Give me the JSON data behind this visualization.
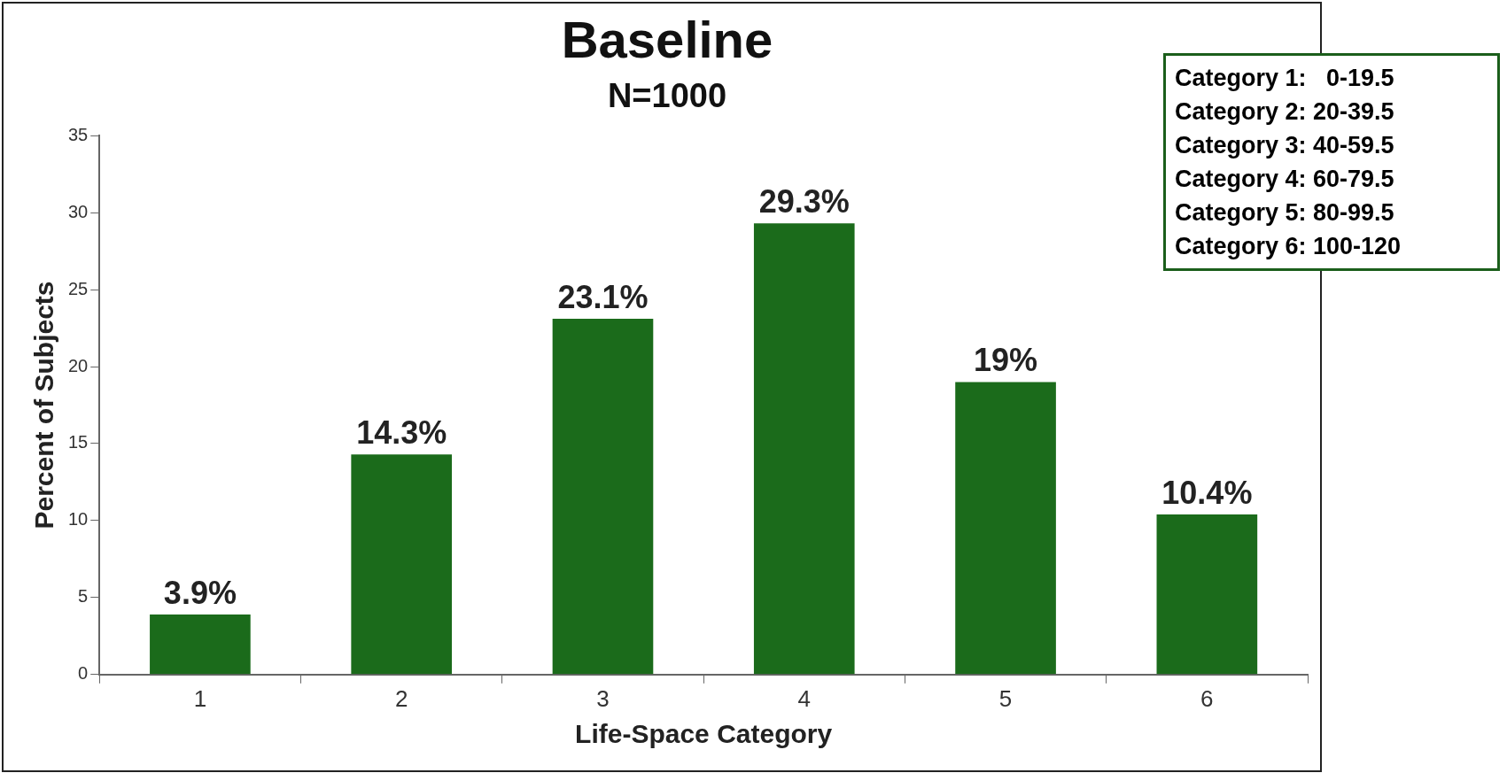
{
  "chart_data": {
    "type": "bar",
    "title": "Baseline",
    "subtitle": "N=1000",
    "xlabel": "Life-Space Category",
    "ylabel": "Percent of Subjects",
    "categories": [
      "1",
      "2",
      "3",
      "4",
      "5",
      "6"
    ],
    "values": [
      3.9,
      14.3,
      23.1,
      29.3,
      19,
      10.4
    ],
    "value_labels": [
      "3.9%",
      "14.3%",
      "23.1%",
      "29.3%",
      "19%",
      "10.4%"
    ],
    "color": "#1b6b1b",
    "ylim": [
      0,
      35
    ],
    "yticks": [
      0,
      5,
      10,
      15,
      20,
      25,
      30,
      35
    ],
    "grid": false,
    "legend": false,
    "annotations": [
      "Category 1:   0-19.5",
      "Category 2: 20-39.5",
      "Category 3: 40-59.5",
      "Category 4: 60-79.5",
      "Category 5: 80-99.5",
      "Category 6: 100-120"
    ]
  }
}
